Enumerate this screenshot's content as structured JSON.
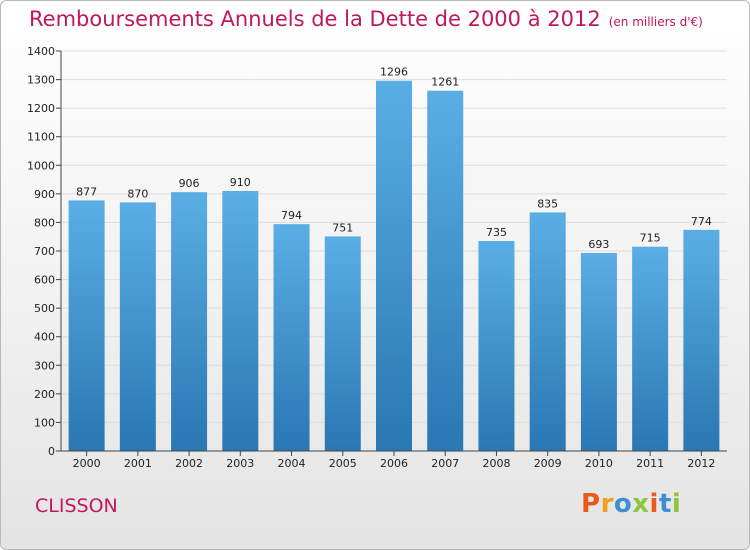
{
  "header": {
    "title": "Remboursements Annuels de la Dette de 2000 à 2012",
    "subtitle": "(en milliers d'€)"
  },
  "footer": {
    "town": "CLISSON",
    "brand": "Proxiti"
  },
  "colors": {
    "title": "#c2185b",
    "bar_top": "#5aaee5",
    "bar_bottom": "#2a77b3",
    "brand_letters": [
      "#e85a1a",
      "#f0a020",
      "#3c8fd0",
      "#8cc63f",
      "#e85a1a",
      "#3c8fd0",
      "#8cc63f"
    ]
  },
  "chart_data": {
    "type": "bar",
    "title": "Remboursements Annuels de la Dette de 2000 à 2012",
    "xlabel": "",
    "ylabel": "",
    "categories": [
      "2000",
      "2001",
      "2002",
      "2003",
      "2004",
      "2005",
      "2006",
      "2007",
      "2008",
      "2009",
      "2010",
      "2011",
      "2012"
    ],
    "values": [
      877,
      870,
      906,
      910,
      794,
      751,
      1296,
      1261,
      735,
      835,
      693,
      715,
      774
    ],
    "ylim": [
      0,
      1400
    ],
    "yticks": [
      0,
      100,
      200,
      300,
      400,
      500,
      600,
      700,
      800,
      900,
      1000,
      1100,
      1200,
      1300,
      1400
    ],
    "grid": true,
    "data_labels": true
  }
}
